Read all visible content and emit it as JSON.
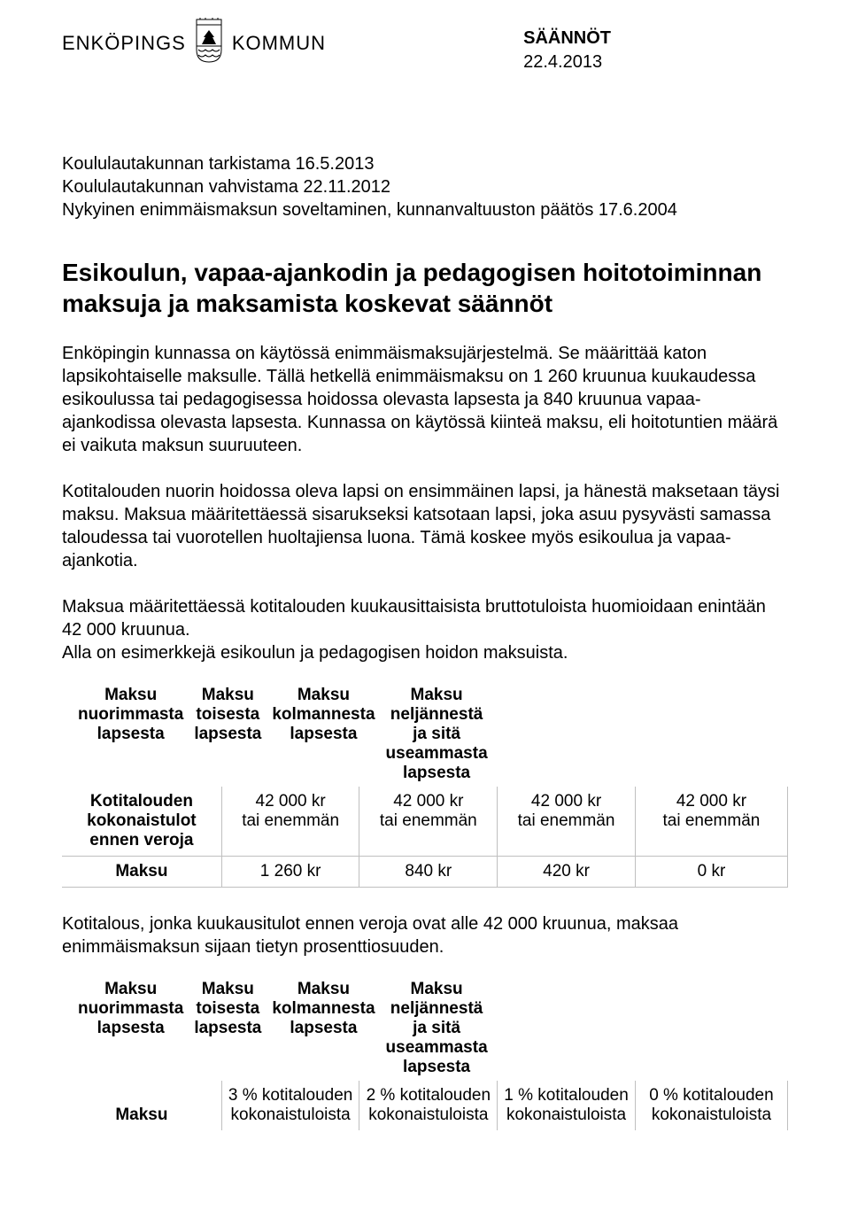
{
  "logo": {
    "left_text": "ENKÖPINGS",
    "right_text": "KOMMUN"
  },
  "header": {
    "doc_type": "SÄÄNNÖT",
    "date": "22.4.2013"
  },
  "meta": {
    "l1": "Koululautakunnan tarkistama 16.5.2013",
    "l2": "Koululautakunnan vahvistama 22.11.2012",
    "l3": "Nykyinen enimmäismaksun soveltaminen, kunnanvaltuuston päätös 17.6.2004"
  },
  "title": "Esikoulun, vapaa-ajankodin ja pedagogisen hoitotoiminnan maksuja ja maksamista koskevat säännöt",
  "para1": "Enköpingin kunnassa on käytössä enimmäismaksujärjestelmä. Se määrittää katon lapsikohtaiselle maksulle. Tällä hetkellä enimmäismaksu on 1 260 kruunua kuukaudessa esikoulussa tai pedagogisessa hoidossa olevasta lapsesta ja 840 kruunua vapaa-ajankodissa olevasta lapsesta. Kunnassa on käytössä kiinteä maksu, eli hoitotuntien määrä ei vaikuta maksun suuruuteen.",
  "para2": "Kotitalouden nuorin hoidossa oleva lapsi on ensimmäinen lapsi, ja hänestä maksetaan täysi maksu. Maksua määritettäessä sisarukseksi katsotaan lapsi, joka asuu pysyvästi samassa taloudessa tai vuorotellen huoltajiensa luona. Tämä koskee myös esikoulua ja vapaa-ajankotia.",
  "para3": "Maksua määritettäessä kotitalouden kuukausittaisista bruttotuloista huomioidaan enintään 42 000 kruunua.",
  "para3b": "Alla on esimerkkejä esikoulun ja pedagogisen hoidon maksuista.",
  "table1": {
    "columns": [
      "",
      "Maksu nuorimmasta lapsesta",
      "Maksu toisesta lapsesta",
      "Maksu kolmannesta lapsesta",
      "Maksu neljännestä ja sitä useammasta lapsesta"
    ],
    "rows": [
      {
        "label": "Kotitalouden kokonaistulot ennen veroja",
        "cells": [
          "42 000 kr\ntai enemmän",
          "42 000 kr\ntai enemmän",
          "42 000 kr\ntai enemmän",
          "42 000 kr\ntai enemmän"
        ]
      },
      {
        "label": "Maksu",
        "cells": [
          "1 260 kr",
          "840 kr",
          "420 kr",
          "0 kr"
        ]
      }
    ]
  },
  "between": "Kotitalous, jonka kuukausitulot ennen veroja ovat alle 42 000 kruunua, maksaa enimmäismaksun sijaan tietyn prosenttiosuuden.",
  "table2": {
    "columns": [
      "",
      "Maksu nuorimmasta lapsesta",
      "Maksu toisesta lapsesta",
      "Maksu kolmannesta lapsesta",
      "Maksu neljännestä ja sitä useammasta lapsesta"
    ],
    "rows": [
      {
        "label": "Maksu",
        "cells": [
          "3 % kotitalouden kokonaistuloista",
          "2 % kotitalouden kokonaistuloista",
          "1 % kotitalouden kokonaistuloista",
          "0 % kotitalouden kokonaistuloista"
        ]
      }
    ]
  },
  "colors": {
    "text": "#000000",
    "background": "#ffffff",
    "border": "#bfbfbf"
  },
  "typography": {
    "body_fontsize": 20,
    "title_fontsize": 28
  }
}
